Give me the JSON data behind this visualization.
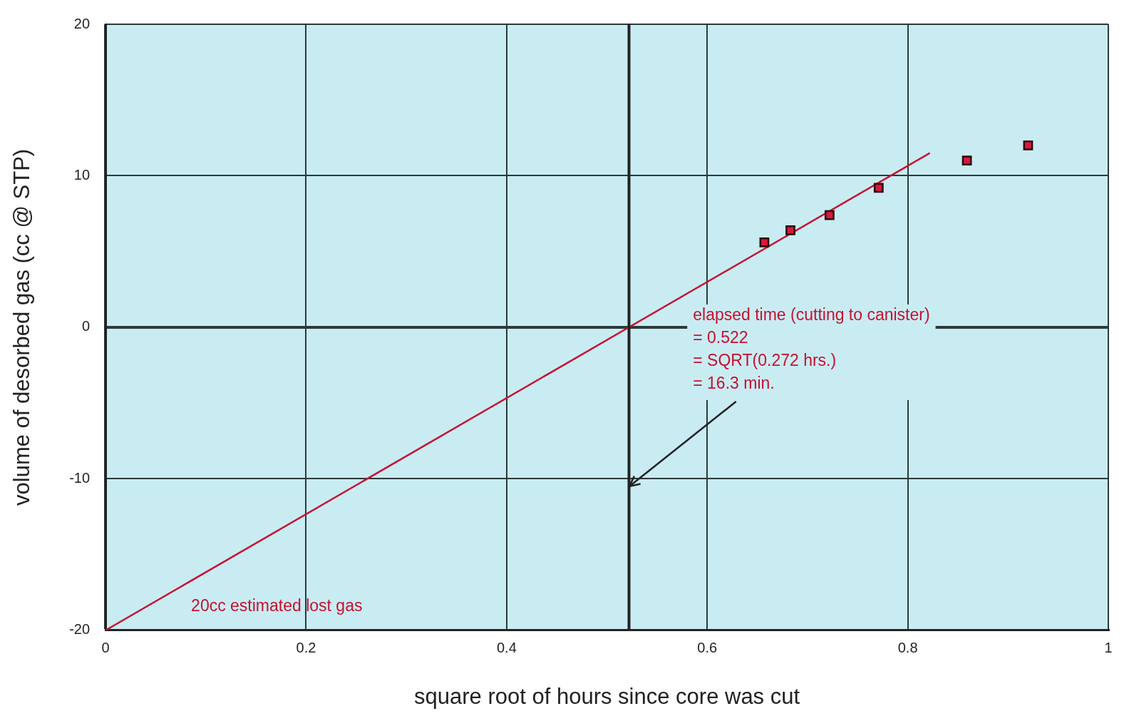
{
  "chart_data": {
    "type": "scatter",
    "xlabel": "square root of hours since core was cut",
    "ylabel": "volume of desorbed gas (cc @ STP)",
    "xlim": [
      0,
      1
    ],
    "xticks": [
      0,
      0.2,
      0.4,
      0.6,
      0.8,
      1
    ],
    "ylim": [
      -20,
      20
    ],
    "yticks": [
      -20,
      -10,
      0,
      10,
      20
    ],
    "grid": true,
    "legend": false,
    "marker": "square",
    "series": [
      {
        "color": "#d9173f",
        "x": [
          0.657,
          0.683,
          0.722,
          0.771,
          0.859,
          0.92
        ],
        "values": [
          5.6,
          6.4,
          7.4,
          9.2,
          11,
          12
        ]
      },
      {
        "type": "line",
        "color": "#c8102e",
        "marker": "none",
        "x": [
          0,
          0.822
        ],
        "values": [
          -20,
          11.5
        ]
      }
    ],
    "ref_lines": [
      {
        "axis": "x",
        "value": 0.522,
        "color": "#222222"
      }
    ],
    "annotations": [
      {
        "text": "elapsed time (cutting to canister)\n= 0.522\n= SQRT(0.272 hrs.)\n= 16.3 min.",
        "x": 0.522,
        "y": -10.5
      },
      "20cc estimated lost gas"
    ]
  }
}
